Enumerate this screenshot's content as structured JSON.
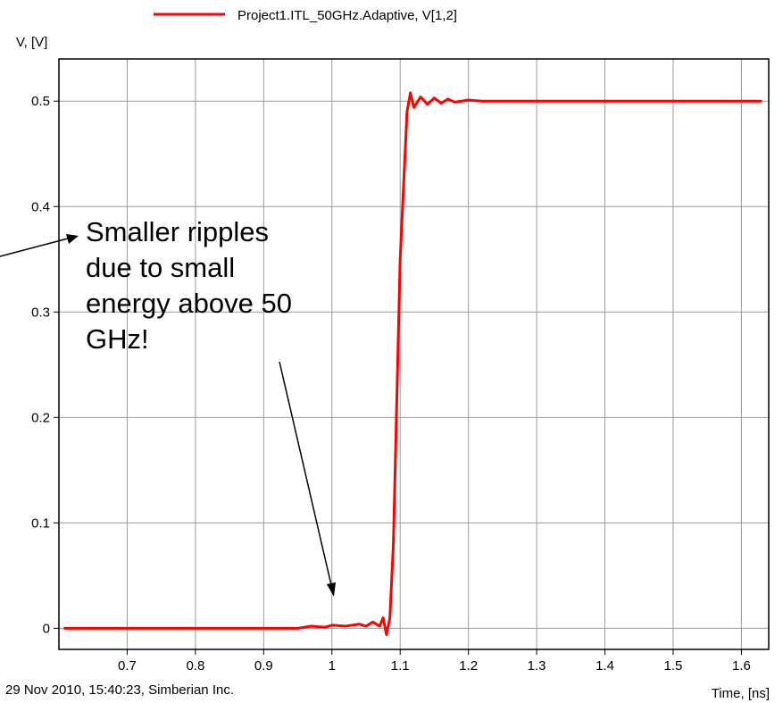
{
  "chart_data": {
    "type": "line",
    "ylabel": "V, [V]",
    "xlabel": "Time, [ns]",
    "xlim": [
      0.6,
      1.64
    ],
    "ylim": [
      -0.02,
      0.54
    ],
    "x_ticks": [
      "0.7",
      "0.8",
      "0.9",
      "1",
      "1.1",
      "1.2",
      "1.3",
      "1.4",
      "1.5",
      "1.6"
    ],
    "y_ticks": [
      "0",
      "0.1",
      "0.2",
      "0.3",
      "0.4",
      "0.5"
    ],
    "grid": true,
    "legend_position": "top",
    "series": [
      {
        "name": "Project1.ITL_50GHz.Adaptive, V[1,2]",
        "color": "#ff0000",
        "x": [
          0.607,
          0.95,
          0.97,
          0.99,
          1.0,
          1.02,
          1.04,
          1.05,
          1.06,
          1.07,
          1.075,
          1.08,
          1.085,
          1.09,
          1.1,
          1.11,
          1.115,
          1.12,
          1.13,
          1.14,
          1.15,
          1.16,
          1.17,
          1.18,
          1.2,
          1.22,
          1.3,
          1.63
        ],
        "y": [
          0.0,
          0.0,
          0.002,
          0.001,
          0.003,
          0.002,
          0.004,
          0.002,
          0.006,
          0.002,
          0.01,
          -0.006,
          0.01,
          0.08,
          0.35,
          0.49,
          0.508,
          0.494,
          0.504,
          0.497,
          0.503,
          0.498,
          0.502,
          0.499,
          0.501,
          0.5,
          0.5,
          0.5
        ]
      }
    ]
  },
  "annotation": {
    "lines": [
      "Smaller ripples",
      "due to small",
      "energy above 50",
      "GHz!"
    ]
  },
  "footer": {
    "left": "29 Nov 2010, 15:40:23, Simberian Inc."
  }
}
